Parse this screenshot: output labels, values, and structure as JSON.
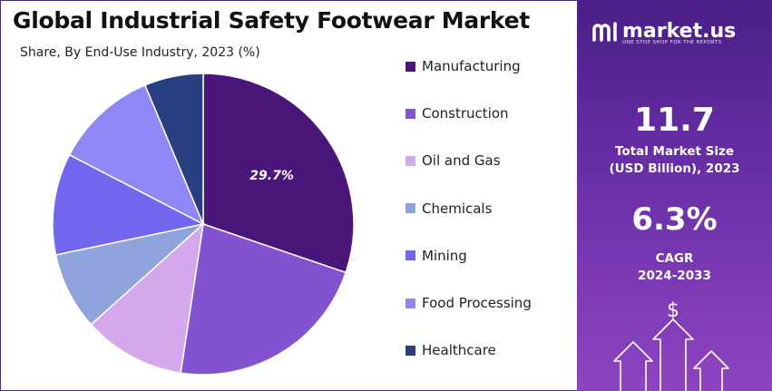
{
  "title": "Global Industrial Safety Footwear Market",
  "subtitle": "Share, By End-Use Industry, 2023 (%)",
  "chart_data": {
    "type": "pie",
    "title": "Global Industrial Safety Footwear Market",
    "subtitle": "Share, By End-Use Industry, 2023 (%)",
    "categories": [
      "Manufacturing",
      "Construction",
      "Oil and Gas",
      "Chemicals",
      "Mining",
      "Food Processing",
      "Healthcare"
    ],
    "values": [
      29.7,
      21.8,
      10.8,
      8.2,
      10.7,
      10.9,
      6.2
    ],
    "colors": [
      "#4a1679",
      "#8352cf",
      "#d5a8ee",
      "#8fa4dc",
      "#7266ee",
      "#8f87f6",
      "#2a3f82"
    ],
    "data_labels": [
      "29.7%",
      "",
      "",
      "",
      "",
      "",
      ""
    ],
    "legend_position": "right",
    "grid": false
  },
  "side_panel": {
    "brand_name": "market.us",
    "brand_tagline": "ONE STOP SHOP FOR THE REPORTS",
    "market_size_value": "11.7",
    "market_size_label_line1": "Total Market Size",
    "market_size_label_line2": "(USD Billion), 2023",
    "cagr_value": "6.3%",
    "cagr_label_line1": "CAGR",
    "cagr_label_line2": "2024-2033",
    "icons": [
      "market-us-logo-icon",
      "dollar-arrows-icon"
    ]
  }
}
